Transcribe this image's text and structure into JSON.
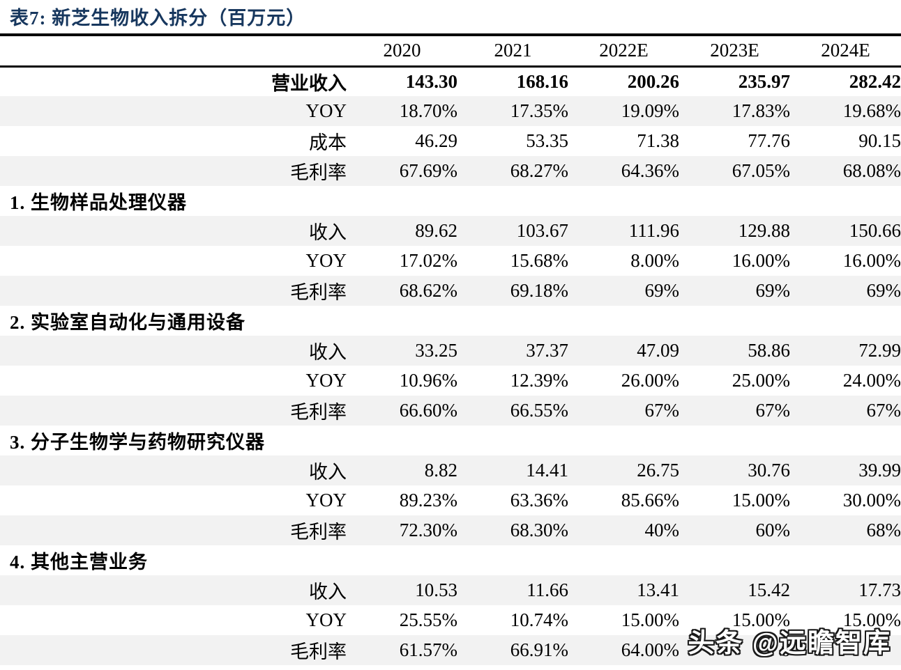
{
  "title": "表7:  新芝生物收入拆分（百万元）",
  "colors": {
    "title_navy": "#17375E",
    "row_shade": "#F2F2F2",
    "rule_black": "#000000"
  },
  "watermark": {
    "text": "头条 @远瞻智库"
  },
  "table": {
    "col_headers": [
      "",
      "2020",
      "2021",
      "2022E",
      "2023E",
      "2024E"
    ],
    "rows": [
      {
        "type": "data",
        "bold": true,
        "shaded": false,
        "label": "营业收入",
        "values": [
          "143.30",
          "168.16",
          "200.26",
          "235.97",
          "282.42"
        ]
      },
      {
        "type": "data",
        "bold": false,
        "shaded": true,
        "label": "YOY",
        "values": [
          "18.70%",
          "17.35%",
          "19.09%",
          "17.83%",
          "19.68%"
        ]
      },
      {
        "type": "data",
        "bold": false,
        "shaded": false,
        "label": "成本",
        "values": [
          "46.29",
          "53.35",
          "71.38",
          "77.76",
          "90.15"
        ]
      },
      {
        "type": "data",
        "bold": false,
        "shaded": true,
        "label": "毛利率",
        "values": [
          "67.69%",
          "68.27%",
          "64.36%",
          "67.05%",
          "68.08%"
        ]
      },
      {
        "type": "section",
        "shaded": false,
        "label": "1. 生物样品处理仪器"
      },
      {
        "type": "data",
        "bold": false,
        "shaded": true,
        "label": "收入",
        "values": [
          "89.62",
          "103.67",
          "111.96",
          "129.88",
          "150.66"
        ]
      },
      {
        "type": "data",
        "bold": false,
        "shaded": false,
        "label": "YOY",
        "values": [
          "17.02%",
          "15.68%",
          "8.00%",
          "16.00%",
          "16.00%"
        ]
      },
      {
        "type": "data",
        "bold": false,
        "shaded": true,
        "label": "毛利率",
        "values": [
          "68.62%",
          "69.18%",
          "69%",
          "69%",
          "69%"
        ]
      },
      {
        "type": "section",
        "shaded": false,
        "label": "2. 实验室自动化与通用设备"
      },
      {
        "type": "data",
        "bold": false,
        "shaded": true,
        "label": "收入",
        "values": [
          "33.25",
          "37.37",
          "47.09",
          "58.86",
          "72.99"
        ]
      },
      {
        "type": "data",
        "bold": false,
        "shaded": false,
        "label": "YOY",
        "values": [
          "10.96%",
          "12.39%",
          "26.00%",
          "25.00%",
          "24.00%"
        ]
      },
      {
        "type": "data",
        "bold": false,
        "shaded": true,
        "label": "毛利率",
        "values": [
          "66.60%",
          "66.55%",
          "67%",
          "67%",
          "67%"
        ]
      },
      {
        "type": "section",
        "shaded": false,
        "label": "3. 分子生物学与药物研究仪器"
      },
      {
        "type": "data",
        "bold": false,
        "shaded": true,
        "label": "收入",
        "values": [
          "8.82",
          "14.41",
          "26.75",
          "30.76",
          "39.99"
        ]
      },
      {
        "type": "data",
        "bold": false,
        "shaded": false,
        "label": "YOY",
        "values": [
          "89.23%",
          "63.36%",
          "85.66%",
          "15.00%",
          "30.00%"
        ]
      },
      {
        "type": "data",
        "bold": false,
        "shaded": true,
        "label": "毛利率",
        "values": [
          "72.30%",
          "68.30%",
          "40%",
          "60%",
          "68%"
        ]
      },
      {
        "type": "section",
        "shaded": false,
        "label": "4. 其他主营业务"
      },
      {
        "type": "data",
        "bold": false,
        "shaded": true,
        "label": "收入",
        "values": [
          "10.53",
          "11.66",
          "13.41",
          "15.42",
          "17.73"
        ]
      },
      {
        "type": "data",
        "bold": false,
        "shaded": false,
        "label": "YOY",
        "values": [
          "25.55%",
          "10.74%",
          "15.00%",
          "15.00%",
          "15.00%"
        ]
      },
      {
        "type": "data",
        "bold": false,
        "shaded": true,
        "label": "毛利率",
        "values": [
          "61.57%",
          "66.91%",
          "64.00%",
          "6",
          ""
        ]
      }
    ]
  }
}
